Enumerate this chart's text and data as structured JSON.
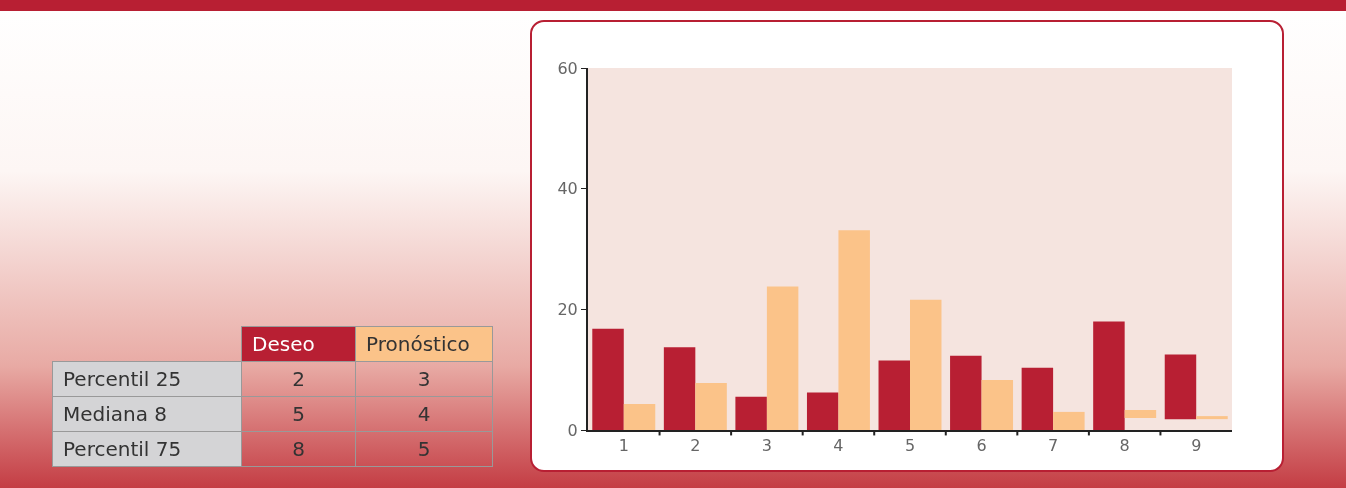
{
  "chart_data": {
    "type": "bar",
    "categories": [
      "1",
      "2",
      "3",
      "4",
      "5",
      "6",
      "7",
      "8",
      "9"
    ],
    "series": [
      {
        "name": "Deseo",
        "color": "#b81f33",
        "values": [
          16.8,
          13.7,
          5.5,
          6.2,
          11.5,
          12.3,
          10.3,
          18.0,
          10.7
        ],
        "base": [
          0,
          0,
          0,
          0,
          0,
          0,
          0,
          0,
          1.8
        ]
      },
      {
        "name": "Pronóstico",
        "color": "#fbc389",
        "values": [
          4.3,
          7.8,
          23.8,
          33.1,
          21.6,
          8.3,
          3.0,
          1.3,
          0.5
        ],
        "base": [
          0,
          0,
          0,
          0,
          0,
          0,
          0,
          2.0,
          1.8
        ]
      }
    ],
    "ylim": [
      0,
      60
    ],
    "yticks": [
      0,
      20,
      40,
      60
    ],
    "annotations": [
      "Percentil 25",
      "2",
      "3",
      "Mediana 8",
      "5",
      "4",
      "Percentil 75",
      "8",
      "5"
    ]
  }
}
